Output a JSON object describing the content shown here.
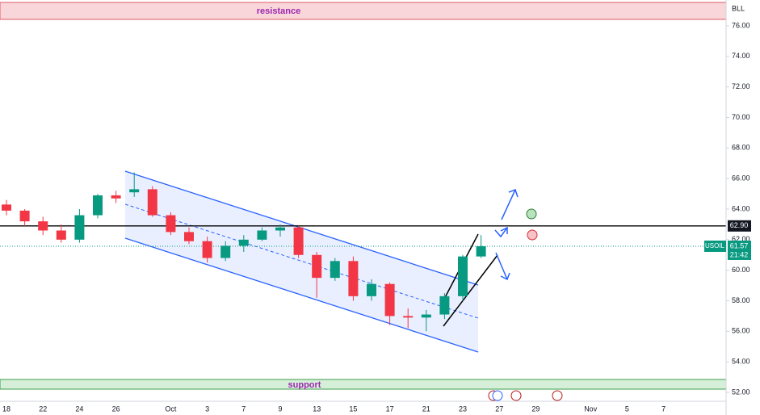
{
  "chart_data": {
    "type": "candlestick",
    "symbol": "USOIL",
    "unit_label": "BLL",
    "last_price": {
      "value": 61.57,
      "label": "61.57"
    },
    "countdown": "21:42",
    "level": {
      "value": 62.9,
      "label": "62.90"
    },
    "resistance_label": "resistance",
    "support_label": "support",
    "up_color": "#089981",
    "down_color": "#f23645",
    "xticks": [
      "18",
      "22",
      "24",
      "26",
      "Oct",
      "3",
      "7",
      "9",
      "13",
      "15",
      "17",
      "21",
      "23",
      "27",
      "29",
      "Nov",
      "5",
      "7"
    ],
    "open": [
      64.3,
      63.9,
      63.2,
      62.6,
      62.0,
      63.6,
      64.9,
      65.1,
      65.3,
      63.6,
      62.5,
      61.9,
      60.8,
      61.6,
      62.0,
      62.6,
      62.8,
      61.0,
      59.5,
      60.6,
      58.3,
      59.1,
      57.0,
      56.9,
      57.1,
      58.3,
      60.9
    ],
    "high": [
      64.6,
      64.0,
      63.5,
      63.0,
      64.0,
      65.0,
      65.2,
      66.4,
      65.5,
      63.8,
      62.8,
      62.2,
      61.9,
      62.3,
      62.8,
      63.0,
      62.9,
      61.2,
      60.8,
      60.9,
      59.4,
      59.2,
      57.5,
      57.4,
      58.5,
      61.0,
      62.3
    ],
    "low": [
      63.6,
      62.9,
      62.3,
      61.8,
      61.8,
      63.4,
      64.4,
      64.8,
      63.5,
      62.3,
      61.7,
      60.5,
      60.6,
      61.2,
      61.9,
      62.2,
      60.8,
      58.2,
      59.3,
      58.0,
      58.0,
      56.4,
      56.2,
      56.0,
      56.8,
      58.0,
      60.8
    ],
    "close": [
      63.9,
      63.2,
      62.6,
      62.0,
      63.6,
      64.9,
      64.7,
      65.3,
      63.6,
      62.5,
      61.9,
      60.8,
      61.6,
      62.0,
      62.6,
      62.8,
      61.0,
      59.5,
      60.6,
      58.3,
      59.1,
      57.0,
      56.9,
      57.1,
      58.3,
      60.9,
      61.57
    ],
    "ylim": [
      51.42,
      77.69
    ],
    "yticks": [
      {
        "value": 52,
        "label": "52.00"
      },
      {
        "value": 54,
        "label": "54.00"
      },
      {
        "value": 56,
        "label": "56.00"
      },
      {
        "value": 58,
        "label": "58.00"
      },
      {
        "value": 60,
        "label": "60.00"
      },
      {
        "value": 62,
        "label": "62.00"
      },
      {
        "value": 64,
        "label": "64.00"
      },
      {
        "value": 66,
        "label": "66.00"
      },
      {
        "value": 68,
        "label": "68.00"
      },
      {
        "value": 70,
        "label": "70.00"
      },
      {
        "value": 72,
        "label": "72.00"
      },
      {
        "value": 74,
        "label": "74.00"
      },
      {
        "value": 76,
        "label": "76.00"
      }
    ]
  }
}
